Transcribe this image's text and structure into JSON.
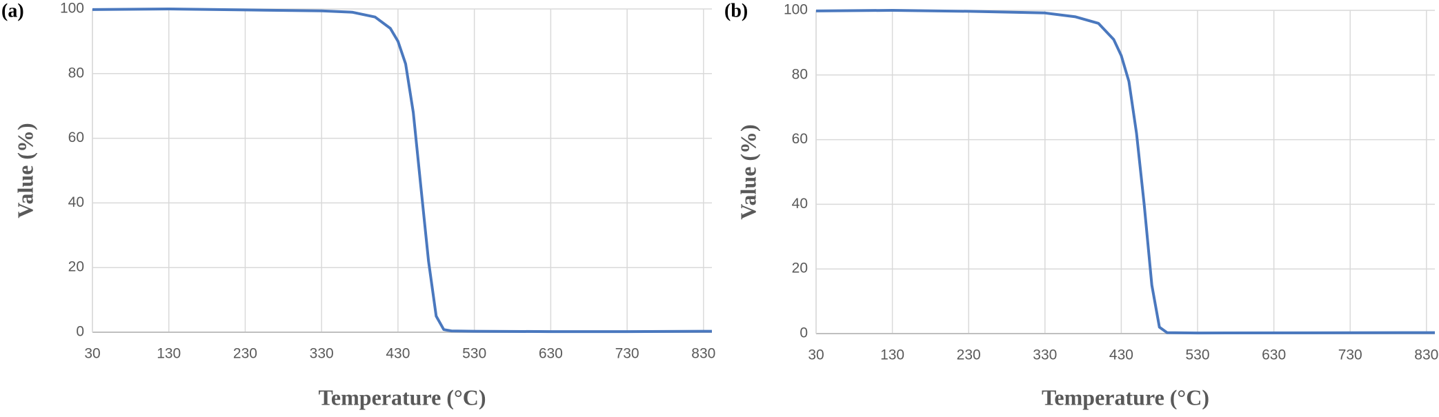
{
  "chart_data": [
    {
      "type": "line",
      "panel_label": "(a)",
      "x_label": "Temperature (°C)",
      "y_label": "Value (%)",
      "color": "#4a78be",
      "grid": true,
      "xlim": [
        30,
        841
      ],
      "xticks": [
        30,
        130,
        230,
        330,
        430,
        530,
        630,
        730,
        830
      ],
      "ylim": [
        0,
        100
      ],
      "yticks": [
        0,
        20,
        40,
        60,
        80,
        100
      ],
      "x": [
        30,
        130,
        230,
        330,
        370,
        400,
        420,
        430,
        440,
        450,
        460,
        470,
        480,
        490,
        500,
        530,
        630,
        730,
        841
      ],
      "values": [
        99.8,
        100,
        99.7,
        99.4,
        99,
        97.5,
        94,
        90,
        83,
        68,
        45,
        22,
        5,
        0.8,
        0.4,
        0.3,
        0.2,
        0.2,
        0.3
      ]
    },
    {
      "type": "line",
      "panel_label": "(b)",
      "x_label": "Temperature (°C)",
      "y_label": "Value (%)",
      "color": "#4a78be",
      "grid": true,
      "xlim": [
        30,
        841
      ],
      "xticks": [
        30,
        130,
        230,
        330,
        430,
        530,
        630,
        730,
        830
      ],
      "ylim": [
        0,
        100
      ],
      "yticks": [
        0,
        20,
        40,
        60,
        80,
        100
      ],
      "x": [
        30,
        130,
        230,
        330,
        370,
        400,
        420,
        430,
        440,
        450,
        460,
        470,
        480,
        490,
        530,
        841
      ],
      "values": [
        99.8,
        100,
        99.7,
        99.2,
        98,
        96,
        91,
        86,
        78,
        62,
        40,
        15,
        2,
        0.3,
        0.2,
        0.3
      ]
    }
  ]
}
